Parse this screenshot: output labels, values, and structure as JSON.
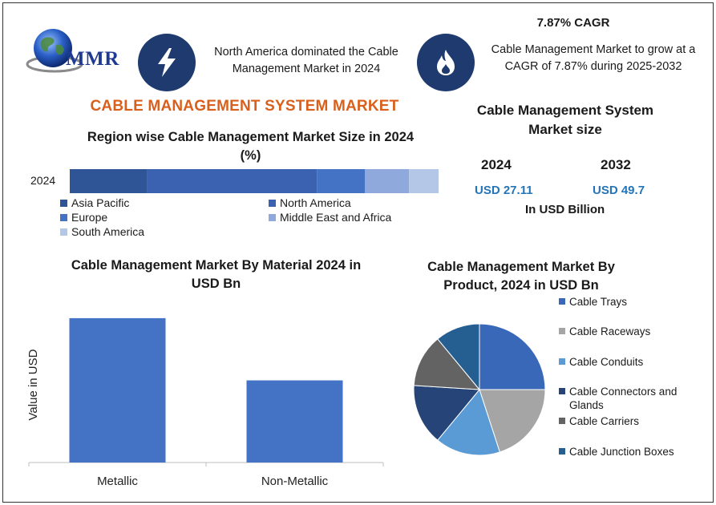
{
  "header": {
    "logo_text": "MMR",
    "headline_left": "North America dominated the Cable Management Market in 2024",
    "cagr_title": "7.87% CAGR",
    "headline_right": "Cable Management Market to grow at a CAGR of 7.87% during 2025-2032"
  },
  "main_title": "CABLE MANAGEMENT SYSTEM MARKET",
  "market_size": {
    "title": "Cable Management System Market size",
    "year_a": "2024",
    "year_b": "2032",
    "value_a": "USD 27.11",
    "value_b": "USD 49.7",
    "unit": "In USD Billion"
  },
  "chart_data": [
    {
      "type": "bar",
      "orientation": "horizontal-stacked",
      "title": "Region wise Cable Management Market Size in 2024 (%)",
      "categories": [
        "2024"
      ],
      "series": [
        {
          "name": "Asia Pacific",
          "values": [
            21
          ],
          "color": "#2f5597"
        },
        {
          "name": "North America",
          "values": [
            46
          ],
          "color": "#3a62b0"
        },
        {
          "name": "Europe",
          "values": [
            13
          ],
          "color": "#4472c4"
        },
        {
          "name": "Middle East and Africa",
          "values": [
            12
          ],
          "color": "#8fa9dc"
        },
        {
          "name": "South America",
          "values": [
            8
          ],
          "color": "#b4c7e7"
        }
      ]
    },
    {
      "type": "bar",
      "title": "Cable Management Market By Material 2024 in USD Bn",
      "ylabel": "Value in USD",
      "categories": [
        "Metallic",
        "Non-Metallic"
      ],
      "values": [
        17.4,
        9.9
      ],
      "ylim": [
        0,
        20
      ],
      "color": "#4472c4"
    },
    {
      "type": "pie",
      "title": "Cable Management Market By Product, 2024 in USD Bn",
      "categories": [
        "Cable Trays",
        "Cable Raceways",
        "Cable Conduits",
        "Cable Connectors and Glands",
        "Cable Carriers",
        "Cable Junction Boxes"
      ],
      "values": [
        25,
        20,
        16,
        15,
        13,
        11
      ],
      "colors": [
        "#3a68b8",
        "#a5a5a5",
        "#5b9bd5",
        "#264478",
        "#636363",
        "#255e91"
      ]
    }
  ]
}
